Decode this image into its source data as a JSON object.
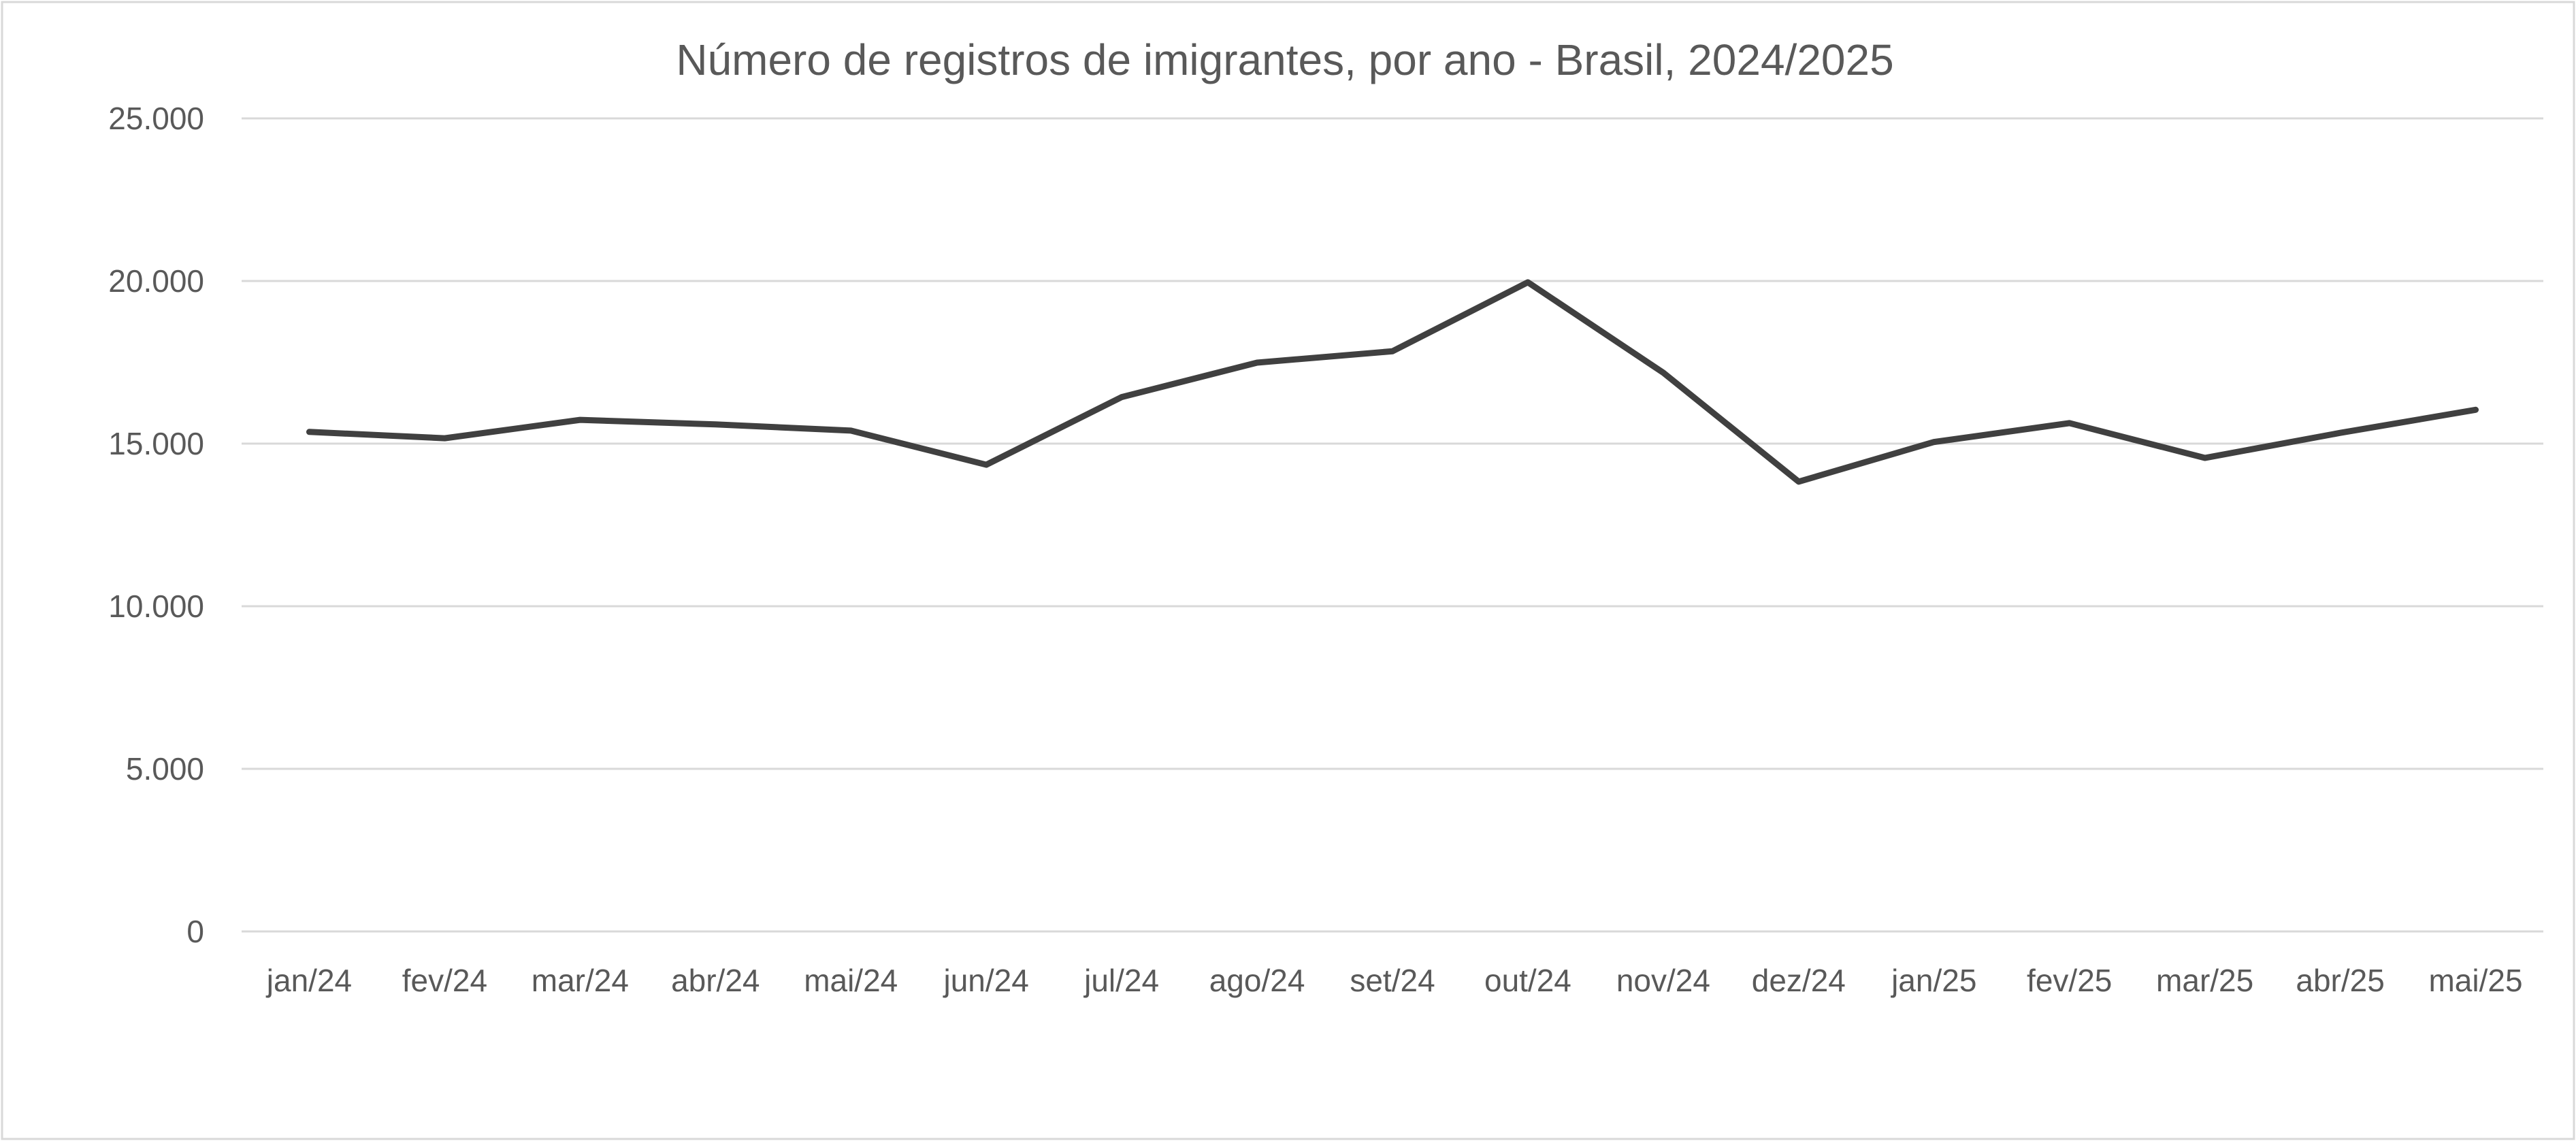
{
  "chart_data": {
    "type": "line",
    "title": "Número de registros de imigrantes, por ano - Brasil, 2024/2025",
    "xlabel": "",
    "ylabel": "",
    "categories": [
      "jan/24",
      "fev/24",
      "mar/24",
      "abr/24",
      "mai/24",
      "jun/24",
      "jul/24",
      "ago/24",
      "set/24",
      "out/24",
      "nov/24",
      "dez/24",
      "jan/25",
      "fev/25",
      "mar/25",
      "abr/25",
      "mai/25"
    ],
    "series": [
      {
        "values": [
          15360,
          15165,
          15730,
          15590,
          15400,
          14350,
          16430,
          17490,
          17840,
          19960,
          17180,
          13830,
          15050,
          15630,
          14560,
          15330,
          16040
        ],
        "color": "#404040"
      }
    ],
    "ylim": [
      0,
      25000
    ],
    "yticks": [
      0,
      5000,
      10000,
      15000,
      20000,
      25000
    ],
    "ytick_labels": [
      "0",
      "5.000",
      "10.000",
      "15.000",
      "20.000",
      "25.000"
    ],
    "grid": true,
    "legend": "none",
    "colors": {
      "line": "#404040",
      "grid": "#d9d9d9",
      "text": "#595959",
      "border": "#d9d9d9"
    }
  }
}
